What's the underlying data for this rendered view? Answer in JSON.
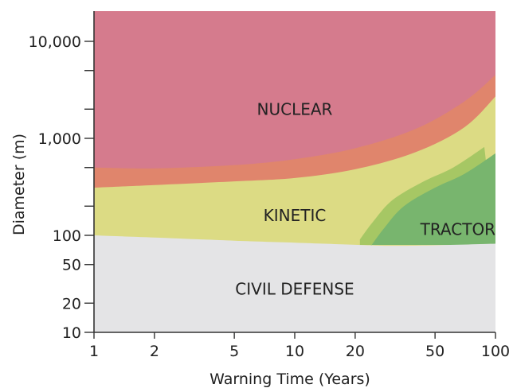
{
  "chart_data": {
    "type": "area",
    "xlabel": "Warning Time (Years)",
    "ylabel": "Diameter (m)",
    "x_scale": "log",
    "y_scale": "log",
    "xlim": [
      1,
      100
    ],
    "ylim": [
      10,
      16000
    ],
    "x_ticks": [
      1,
      2,
      5,
      10,
      20,
      50,
      100
    ],
    "x_tick_labels": [
      "1",
      "2",
      "5",
      "10",
      "20",
      "50",
      "100"
    ],
    "y_labeled_ticks": [
      10,
      20,
      50,
      100,
      1000,
      10000
    ],
    "y_tick_labels": [
      "10",
      "20",
      "50",
      "100",
      "1,000",
      "10,000"
    ],
    "y_unlabeled_ticks": [
      200,
      500,
      2000,
      5000
    ],
    "regions": [
      {
        "name": "NUCLEAR",
        "color": "#d57b8d",
        "label_at": {
          "x": 10,
          "y": 2000
        }
      },
      {
        "name": "KINETIC",
        "color": "#dcdb84",
        "label_at": {
          "x": 10,
          "y": 160
        }
      },
      {
        "name": "TRACTOR",
        "color": "#78b56e",
        "label_at": {
          "x": 65,
          "y": 115
        }
      },
      {
        "name": "CIVIL DEFENSE",
        "color": "#e4e4e6",
        "label_at": {
          "x": 10,
          "y": 28
        }
      }
    ],
    "boundaries": {
      "nuclear_transition_band": {
        "color": "#e0856c",
        "upper": [
          [
            1,
            500
          ],
          [
            2,
            490
          ],
          [
            5,
            530
          ],
          [
            10,
            610
          ],
          [
            20,
            790
          ],
          [
            40,
            1250
          ],
          [
            70,
            2400
          ],
          [
            100,
            4500
          ]
        ],
        "lower": [
          [
            1,
            310
          ],
          [
            2,
            330
          ],
          [
            5,
            360
          ],
          [
            10,
            390
          ],
          [
            20,
            480
          ],
          [
            40,
            720
          ],
          [
            70,
            1300
          ],
          [
            100,
            2700
          ]
        ]
      },
      "kinetic_civil": [
        [
          1,
          100
        ],
        [
          2,
          95
        ],
        [
          5,
          88
        ],
        [
          10,
          84
        ],
        [
          20,
          80
        ],
        [
          30,
          78
        ],
        [
          50,
          79
        ],
        [
          100,
          82
        ]
      ],
      "tractor_zone": {
        "top": [
          [
            24,
            78
          ],
          [
            28,
            120
          ],
          [
            35,
            200
          ],
          [
            50,
            310
          ],
          [
            70,
            430
          ],
          [
            100,
            700
          ]
        ],
        "outer_band_color": "#a6c764"
      }
    },
    "grid": false,
    "legend": "none"
  }
}
